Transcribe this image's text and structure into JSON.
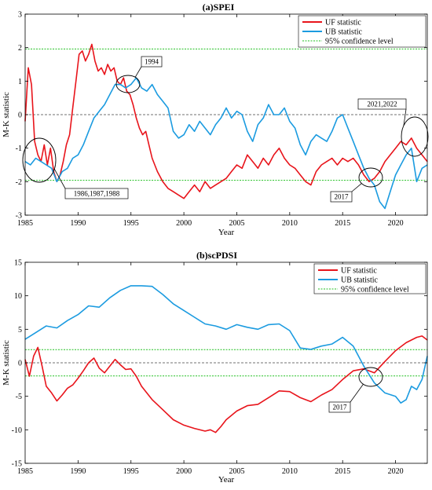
{
  "chart_data": [
    {
      "type": "line",
      "title": "(a)SPEI",
      "xlabel": "Year",
      "ylabel": "M-K statistic",
      "xlim": [
        1985,
        2023
      ],
      "ylim": [
        -3,
        3
      ],
      "x_ticks": [
        1985,
        1990,
        1995,
        2000,
        2005,
        2010,
        2015,
        2020
      ],
      "y_ticks": [
        -3,
        -2,
        -1,
        0,
        1,
        2,
        3
      ],
      "legend_position": "top-right",
      "series": [
        {
          "name": "UF statistic",
          "color": "#e8141b",
          "x": [
            1985.0,
            1985.3,
            1985.6,
            1985.9,
            1986.2,
            1986.5,
            1986.8,
            1987.1,
            1987.4,
            1987.7,
            1988.0,
            1988.3,
            1988.6,
            1988.9,
            1989.2,
            1989.5,
            1989.8,
            1990.1,
            1990.4,
            1990.7,
            1991.0,
            1991.3,
            1991.6,
            1991.9,
            1992.2,
            1992.5,
            1992.8,
            1993.1,
            1993.4,
            1993.7,
            1994.0,
            1994.3,
            1994.6,
            1994.9,
            1995.2,
            1995.5,
            1995.8,
            1996.1,
            1996.4,
            1996.7,
            1997.0,
            1997.5,
            1998.0,
            1998.5,
            1999.0,
            1999.5,
            2000.0,
            2000.5,
            2001.0,
            2001.5,
            2002.0,
            2002.5,
            2003.0,
            2003.5,
            2004.0,
            2004.5,
            2005.0,
            2005.5,
            2006.0,
            2006.5,
            2007.0,
            2007.5,
            2008.0,
            2008.5,
            2009.0,
            2009.5,
            2010.0,
            2010.5,
            2011.0,
            2011.5,
            2012.0,
            2012.5,
            2013.0,
            2013.5,
            2014.0,
            2014.5,
            2015.0,
            2015.5,
            2016.0,
            2016.5,
            2017.0,
            2017.5,
            2018.0,
            2018.5,
            2019.0,
            2019.5,
            2020.0,
            2020.5,
            2021.0,
            2021.5,
            2022.0,
            2022.5,
            2023.0
          ],
          "y": [
            -0.2,
            1.4,
            0.9,
            -0.8,
            -1.2,
            -1.4,
            -0.9,
            -1.5,
            -1.0,
            -1.7,
            -2.0,
            -1.8,
            -1.4,
            -0.9,
            -0.6,
            0.2,
            1.0,
            1.8,
            1.9,
            1.6,
            1.8,
            2.1,
            1.6,
            1.3,
            1.4,
            1.2,
            1.5,
            1.3,
            1.4,
            1.0,
            0.9,
            1.1,
            0.7,
            0.6,
            0.3,
            -0.1,
            -0.4,
            -0.6,
            -0.5,
            -0.9,
            -1.3,
            -1.7,
            -2.0,
            -2.2,
            -2.3,
            -2.4,
            -2.5,
            -2.3,
            -2.1,
            -2.3,
            -2.0,
            -2.2,
            -2.1,
            -2.0,
            -1.9,
            -1.7,
            -1.5,
            -1.6,
            -1.2,
            -1.4,
            -1.6,
            -1.3,
            -1.5,
            -1.2,
            -1.0,
            -1.3,
            -1.5,
            -1.6,
            -1.8,
            -2.0,
            -2.1,
            -1.7,
            -1.5,
            -1.4,
            -1.3,
            -1.5,
            -1.3,
            -1.4,
            -1.3,
            -1.5,
            -1.8,
            -2.0,
            -1.9,
            -1.7,
            -1.4,
            -1.2,
            -1.0,
            -0.8,
            -0.9,
            -0.7,
            -1.0,
            -1.2,
            -1.4
          ]
        },
        {
          "name": "UB statistic",
          "color": "#1b9be0",
          "x": [
            1985.0,
            1985.5,
            1986.0,
            1986.5,
            1987.0,
            1987.5,
            1988.0,
            1988.5,
            1989.0,
            1989.5,
            1990.0,
            1990.5,
            1991.0,
            1991.5,
            1992.0,
            1992.5,
            1993.0,
            1993.5,
            1994.0,
            1994.5,
            1995.0,
            1995.5,
            1996.0,
            1996.5,
            1997.0,
            1997.5,
            1998.0,
            1998.5,
            1999.0,
            1999.5,
            2000.0,
            2000.5,
            2001.0,
            2001.5,
            2002.0,
            2002.5,
            2003.0,
            2003.5,
            2004.0,
            2004.5,
            2005.0,
            2005.5,
            2006.0,
            2006.5,
            2007.0,
            2007.5,
            2008.0,
            2008.5,
            2009.0,
            2009.5,
            2010.0,
            2010.5,
            2011.0,
            2011.5,
            2012.0,
            2012.5,
            2013.0,
            2013.5,
            2014.0,
            2014.5,
            2015.0,
            2015.5,
            2016.0,
            2016.5,
            2017.0,
            2017.5,
            2018.0,
            2018.5,
            2019.0,
            2019.5,
            2020.0,
            2020.5,
            2021.0,
            2021.5,
            2022.0,
            2022.5,
            2023.0
          ],
          "y": [
            -1.4,
            -1.5,
            -1.3,
            -1.4,
            -1.5,
            -1.6,
            -2.0,
            -1.7,
            -1.6,
            -1.3,
            -1.2,
            -0.9,
            -0.5,
            -0.1,
            0.1,
            0.3,
            0.6,
            0.9,
            0.9,
            0.8,
            0.9,
            1.1,
            0.8,
            0.7,
            0.9,
            0.6,
            0.4,
            0.2,
            -0.5,
            -0.7,
            -0.6,
            -0.3,
            -0.5,
            -0.2,
            -0.4,
            -0.6,
            -0.3,
            -0.1,
            0.2,
            -0.1,
            0.1,
            0.0,
            -0.5,
            -0.8,
            -0.3,
            -0.1,
            0.3,
            0.0,
            0.0,
            0.2,
            -0.2,
            -0.4,
            -0.9,
            -1.2,
            -0.8,
            -0.6,
            -0.7,
            -0.8,
            -0.5,
            -0.1,
            0.0,
            -0.4,
            -0.8,
            -1.2,
            -1.6,
            -1.9,
            -2.1,
            -2.6,
            -2.8,
            -2.3,
            -1.8,
            -1.5,
            -1.2,
            -1.0,
            -2.0,
            -1.6,
            -1.5
          ]
        },
        {
          "name": "95% confidence level",
          "color": "#22c022",
          "values": [
            1.96,
            -1.96
          ]
        }
      ],
      "annotations": [
        {
          "text": "1994",
          "x": 1994.2,
          "y": 0.95
        },
        {
          "text": "1986,1987,1988",
          "x": 1987.5,
          "y": -1.75
        },
        {
          "text": "2017",
          "x": 2017.3,
          "y": -1.8
        },
        {
          "text": "2021,2022",
          "x": 2021.8,
          "y": -0.95
        }
      ]
    },
    {
      "type": "line",
      "title": "(b)scPDSI",
      "xlabel": "Year",
      "ylabel": "M-K statistic",
      "xlim": [
        1985,
        2023
      ],
      "ylim": [
        -15,
        15
      ],
      "x_ticks": [
        1985,
        1990,
        1995,
        2000,
        2005,
        2010,
        2015,
        2020
      ],
      "y_ticks": [
        -15,
        -10,
        -5,
        0,
        5,
        10,
        15
      ],
      "legend_position": "top-right",
      "series": [
        {
          "name": "UF statistic",
          "color": "#e8141b",
          "x": [
            1985.0,
            1985.4,
            1985.8,
            1986.2,
            1986.6,
            1987.0,
            1987.5,
            1988.0,
            1988.5,
            1989.0,
            1989.5,
            1990.0,
            1990.5,
            1991.0,
            1991.5,
            1992.0,
            1992.5,
            1993.0,
            1993.5,
            1994.0,
            1994.5,
            1995.0,
            1995.5,
            1996.0,
            1997.0,
            1998.0,
            1999.0,
            2000.0,
            2001.0,
            2002.0,
            2002.5,
            2003.0,
            2003.5,
            2004.0,
            2005.0,
            2006.0,
            2007.0,
            2008.0,
            2009.0,
            2010.0,
            2011.0,
            2012.0,
            2013.0,
            2014.0,
            2015.0,
            2016.0,
            2017.0,
            2018.0,
            2019.0,
            2020.0,
            2021.0,
            2022.0,
            2022.5,
            2023.0
          ],
          "y": [
            0.5,
            -2.0,
            1.0,
            2.3,
            -0.5,
            -3.5,
            -4.5,
            -5.7,
            -4.8,
            -3.8,
            -3.3,
            -2.3,
            -1.2,
            0.0,
            0.7,
            -0.8,
            -1.5,
            -0.5,
            0.5,
            -0.3,
            -1.0,
            -0.9,
            -2.0,
            -3.5,
            -5.5,
            -7.0,
            -8.5,
            -9.3,
            -9.8,
            -10.2,
            -10.0,
            -10.4,
            -9.5,
            -8.5,
            -7.2,
            -6.4,
            -6.2,
            -5.2,
            -4.2,
            -4.3,
            -5.2,
            -5.8,
            -4.8,
            -4.0,
            -2.5,
            -1.2,
            -0.9,
            -1.5,
            0.2,
            1.8,
            3.0,
            3.8,
            4.0,
            3.4
          ]
        },
        {
          "name": "UB statistic",
          "color": "#1b9be0",
          "x": [
            1985.0,
            1986.0,
            1987.0,
            1988.0,
            1989.0,
            1990.0,
            1991.0,
            1992.0,
            1993.0,
            1994.0,
            1995.0,
            1996.0,
            1997.0,
            1998.0,
            1999.0,
            2000.0,
            2001.0,
            2002.0,
            2003.0,
            2004.0,
            2005.0,
            2006.0,
            2007.0,
            2008.0,
            2009.0,
            2010.0,
            2011.0,
            2012.0,
            2013.0,
            2014.0,
            2015.0,
            2016.0,
            2017.0,
            2018.0,
            2019.0,
            2020.0,
            2020.5,
            2021.0,
            2021.5,
            2022.0,
            2022.5,
            2023.0
          ],
          "y": [
            3.5,
            4.5,
            5.5,
            5.2,
            6.3,
            7.2,
            8.5,
            8.3,
            9.7,
            10.8,
            11.5,
            11.5,
            11.4,
            10.2,
            8.8,
            7.8,
            6.8,
            5.8,
            5.5,
            5.0,
            5.7,
            5.3,
            5.0,
            5.7,
            5.8,
            4.8,
            2.2,
            2.0,
            2.5,
            2.8,
            3.8,
            2.5,
            -0.5,
            -3.0,
            -4.5,
            -5.0,
            -6.0,
            -5.5,
            -3.5,
            -4.0,
            -2.5,
            1.0
          ]
        },
        {
          "name": "95% confidence level",
          "color": "#22c022",
          "values": [
            1.96,
            -1.96
          ]
        }
      ],
      "annotations": [
        {
          "text": "2017",
          "x": 2017.5,
          "y": -1.0
        }
      ]
    }
  ]
}
